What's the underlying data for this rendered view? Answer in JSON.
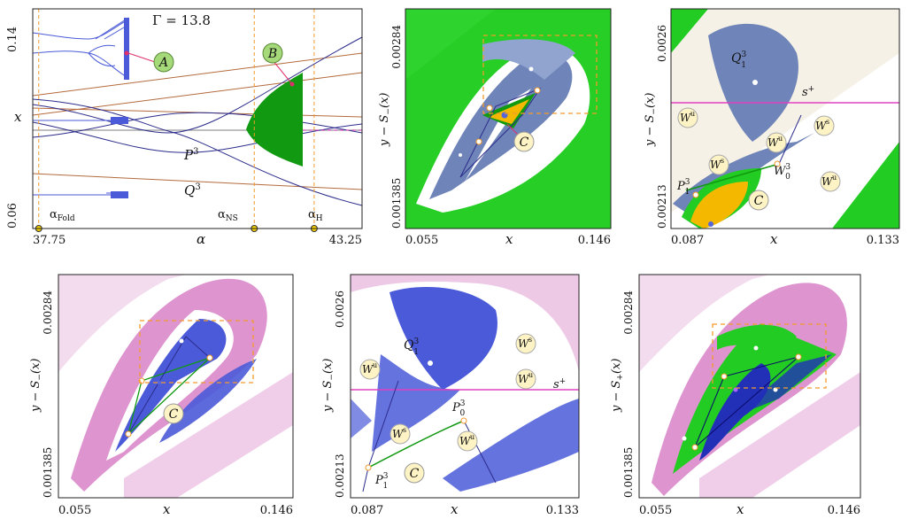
{
  "chart_data": [
    {
      "type": "line",
      "panel": "bifurcation-diagram",
      "title": "Γ = 13.8",
      "xlabel": "α",
      "ylabel": "x",
      "xlim": [
        37.75,
        43.25
      ],
      "ylim": [
        0.06,
        0.14
      ],
      "x_tick_labels": [
        "37.75",
        "43.25"
      ],
      "y_tick_labels": [
        "0.14",
        "0.06"
      ],
      "parameter_markers": [
        {
          "name": "α_Fold",
          "sub": "Fold",
          "value": 37.85
        },
        {
          "name": "α_NS",
          "sub": "NS",
          "value": 41.45
        },
        {
          "name": "α_H",
          "sub": "H",
          "value": 42.45
        }
      ],
      "callouts": [
        "A",
        "B"
      ],
      "orbit_labels": [
        {
          "base": "P",
          "sup": "3"
        },
        {
          "base": "Q",
          "sup": "3"
        }
      ]
    },
    {
      "type": "scatter",
      "panel": "phase-portrait-s-minus",
      "xlabel": "x",
      "ylabel": "y − S_(x)",
      "ylabel_sub": "−",
      "xlim": [
        0.055,
        0.146
      ],
      "ylim": [
        0.001385,
        0.00284
      ],
      "x_tick_labels": [
        "0.055",
        "0.146"
      ],
      "y_tick_labels": [
        "0.00284",
        "0.001385"
      ],
      "annotations": [
        "C"
      ]
    },
    {
      "type": "scatter",
      "panel": "phase-portrait-s-minus-zoom",
      "xlabel": "x",
      "ylabel": "y − S_(x)",
      "ylabel_sub": "−",
      "xlim": [
        0.087,
        0.133
      ],
      "ylim": [
        0.00213,
        0.0026
      ],
      "x_tick_labels": [
        "0.087",
        "0.133"
      ],
      "y_tick_labels": [
        "0.0026",
        "0.00213"
      ],
      "annotations": [
        "Q",
        "s",
        "W",
        "W",
        "W",
        "W",
        "W",
        "W",
        "P",
        "P",
        "C"
      ]
    },
    {
      "type": "scatter",
      "panel": "phase-portrait-s-minus-2",
      "xlabel": "x",
      "ylabel": "y − S_(x)",
      "ylabel_sub": "−",
      "xlim": [
        0.055,
        0.146
      ],
      "ylim": [
        0.001385,
        0.00284
      ],
      "x_tick_labels": [
        "0.055",
        "0.146"
      ],
      "y_tick_labels": [
        "0.00284",
        "0.001385"
      ],
      "annotations": [
        "C"
      ]
    },
    {
      "type": "scatter",
      "panel": "phase-portrait-s-minus-zoom-2",
      "xlabel": "x",
      "ylabel": "y − S_(x)",
      "ylabel_sub": "−",
      "xlim": [
        0.087,
        0.133
      ],
      "ylim": [
        0.00213,
        0.0026
      ],
      "x_tick_labels": [
        "0.087",
        "0.133"
      ],
      "y_tick_labels": [
        "0.0026",
        "0.00213"
      ],
      "annotations": [
        "Q",
        "s",
        "W",
        "W",
        "W",
        "W",
        "W",
        "P",
        "P",
        "C"
      ]
    },
    {
      "type": "scatter",
      "panel": "phase-portrait-s-plus",
      "xlabel": "x",
      "ylabel": "y − S_+(x)",
      "ylabel_sub": "+",
      "xlim": [
        0.055,
        0.146
      ],
      "ylim": [
        0.001385,
        0.00284
      ],
      "x_tick_labels": [
        "0.055",
        "0.146"
      ],
      "y_tick_labels": [
        "0.00284",
        "0.001385"
      ],
      "annotations": []
    }
  ],
  "colors": {
    "green": "#22cc22",
    "dark_green": "#119911",
    "steel_blue": "#5a73a8",
    "blue": "#3344cc",
    "magenta": "#b0208f",
    "orange": "#f39a2b",
    "gold": "#f5b800",
    "callout": "#a6d97a",
    "cream": "#fdf3c4",
    "brown": "#b46a3c"
  }
}
